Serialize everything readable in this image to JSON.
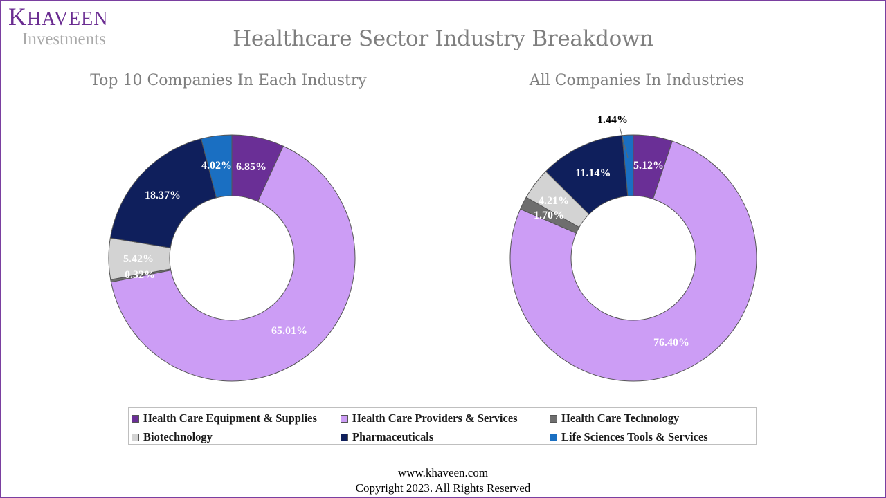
{
  "logo": {
    "first_letter": "K",
    "rest": "HAVEEN",
    "sub": "Investments"
  },
  "page_title": "Healthcare Sector Industry Breakdown",
  "colors": {
    "Health Care Equipment & Supplies": "#6a2f96",
    "Health Care Providers & Services": "#cc9df5",
    "Health Care Technology": "#6e6e6e",
    "Biotechnology": "#d3d3d3",
    "Pharmaceuticals": "#0f1f5c",
    "Life Sciences Tools & Services": "#1a6fc2"
  },
  "legend": [
    "Health Care Equipment & Supplies",
    "Health Care Providers & Services",
    "Health Care Technology",
    "Biotechnology",
    "Pharmaceuticals",
    "Life Sciences Tools & Services"
  ],
  "chart_data": [
    {
      "type": "pie",
      "title": "Top 10 Companies In Each Industry",
      "categories": [
        "Health Care Equipment & Supplies",
        "Health Care Providers & Services",
        "Health Care Technology",
        "Biotechnology",
        "Pharmaceuticals",
        "Life Sciences Tools & Services"
      ],
      "values": [
        6.85,
        65.01,
        0.32,
        5.42,
        18.37,
        4.02
      ],
      "labels": [
        "6.85%",
        "65.01%",
        "0.32%",
        "5.42%",
        "18.37%",
        "4.02%"
      ]
    },
    {
      "type": "pie",
      "title": "All Companies In Industries",
      "categories": [
        "Health Care Equipment & Supplies",
        "Health Care Providers & Services",
        "Health Care Technology",
        "Biotechnology",
        "Pharmaceuticals",
        "Life Sciences Tools & Services"
      ],
      "values": [
        5.12,
        76.4,
        1.7,
        4.21,
        11.14,
        1.44
      ],
      "labels": [
        "5.12%",
        "76.40%",
        "1.70%",
        "4.21%",
        "11.14%",
        "1.44%"
      ]
    }
  ],
  "footer": {
    "url": "www.khaveen.com",
    "copyright": "Copyright 2023.  All Rights Reserved"
  }
}
